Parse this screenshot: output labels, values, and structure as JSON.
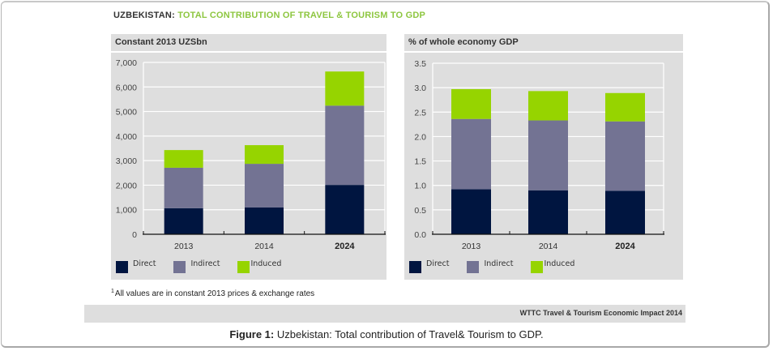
{
  "header": {
    "country": "UZBEKISTAN:",
    "title": "TOTAL CONTRIBUTION OF TRAVEL & TOURISM TO GDP"
  },
  "colors": {
    "direct": "#001540",
    "indirect": "#737393",
    "induced": "#96d400",
    "title_accent": "#8dc63f",
    "panel_bg": "#dedede",
    "gridline": "#ffffff"
  },
  "legend": [
    "Direct",
    "Indirect",
    "Induced"
  ],
  "chart_data": [
    {
      "type": "bar",
      "stacked": true,
      "title": "Constant 2013 UZSbn",
      "xlabel": "",
      "ylabel": "",
      "categories": [
        "2013",
        "2014",
        "2024"
      ],
      "bold_categories": [
        "2024"
      ],
      "ylim": [
        0,
        7000
      ],
      "yticks": [
        0,
        1000,
        2000,
        3000,
        4000,
        5000,
        6000,
        7000
      ],
      "ytick_labels": [
        "0",
        "1,000",
        "2,000",
        "3,000",
        "4,000",
        "5,000",
        "6,000",
        "7,000"
      ],
      "grid": true,
      "legend_position": "bottom",
      "series": [
        {
          "name": "Direct",
          "values": [
            1060,
            1090,
            2010
          ]
        },
        {
          "name": "Indirect",
          "values": [
            1650,
            1780,
            3230
          ]
        },
        {
          "name": "Induced",
          "values": [
            720,
            760,
            1390
          ]
        }
      ]
    },
    {
      "type": "bar",
      "stacked": true,
      "title": "% of whole economy GDP",
      "xlabel": "",
      "ylabel": "",
      "categories": [
        "2013",
        "2014",
        "2024"
      ],
      "bold_categories": [
        "2024"
      ],
      "ylim": [
        0,
        3.5
      ],
      "yticks": [
        0,
        0.5,
        1.0,
        1.5,
        2.0,
        2.5,
        3.0,
        3.5
      ],
      "ytick_labels": [
        "0.0",
        "0.5",
        "1.0",
        "1.5",
        "2.0",
        "2.5",
        "3.0",
        "3.5"
      ],
      "grid": true,
      "legend_position": "bottom",
      "series": [
        {
          "name": "Direct",
          "values": [
            0.92,
            0.9,
            0.89
          ]
        },
        {
          "name": "Indirect",
          "values": [
            1.44,
            1.43,
            1.42
          ]
        },
        {
          "name": "Induced",
          "values": [
            0.61,
            0.6,
            0.58
          ]
        }
      ]
    }
  ],
  "footnote": {
    "marker": "1",
    "text": "All values are in constant 2013 prices & exchange rates"
  },
  "source": "WTTC Travel & Tourism Economic Impact 2014",
  "caption": {
    "label": "Figure 1:",
    "text": " Uzbekistan: Total contribution of Travel& Tourism to GDP."
  }
}
